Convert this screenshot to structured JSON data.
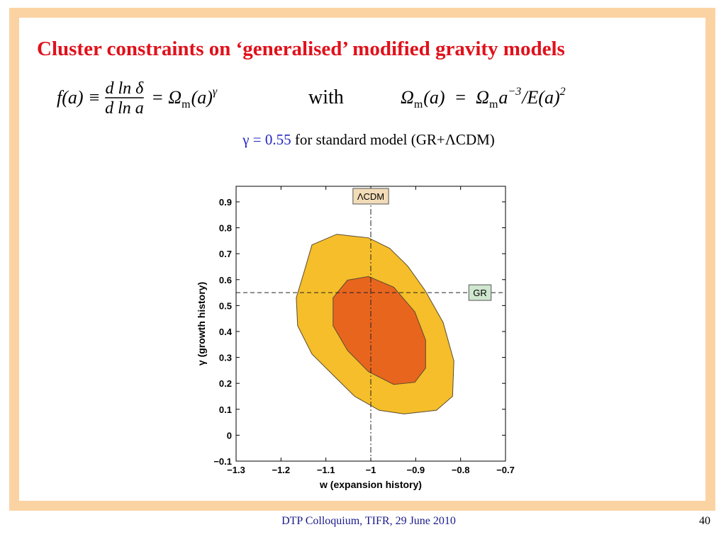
{
  "title": "Cluster constraints on ‘generalised’ modified gravity models",
  "equations": [
    {
      "parts": [
        {
          "text": "f(a) ≡ "
        },
        {
          "frac": [
            "d ln δ",
            "d ln a"
          ]
        },
        {
          "text": " = Ω"
        },
        {
          "sub": "m"
        },
        {
          "text": "(a)"
        },
        {
          "sup": "γ"
        }
      ]
    },
    {
      "parts": [
        {
          "text": "Ω"
        },
        {
          "sub": "m"
        },
        {
          "text": "(a)  =  Ω"
        },
        {
          "sub": "m"
        },
        {
          "text": "a"
        },
        {
          "sup": "−3"
        },
        {
          "text": "/E(a)"
        },
        {
          "sup": "2"
        }
      ]
    }
  ],
  "connector": "with",
  "subtitle": {
    "highlight": "γ = 0.55",
    "rest": " for standard model (GR+ΛCDM)"
  },
  "chart_data": {
    "type": "contour",
    "x_label": "w (expansion history)",
    "y_label": "γ (growth history)",
    "xlim": [
      -1.3,
      -0.7
    ],
    "ylim": [
      -0.1,
      0.96
    ],
    "xticks": [
      {
        "value": -1.3,
        "label": "−1.3"
      },
      {
        "value": -1.2,
        "label": "−1.2"
      },
      {
        "value": -1.1,
        "label": "−1.1"
      },
      {
        "value": -1,
        "label": "−1"
      },
      {
        "value": -0.9,
        "label": "−0.9"
      },
      {
        "value": -0.8,
        "label": "−0.8"
      },
      {
        "value": -0.7,
        "label": "−0.7"
      }
    ],
    "yticks": [
      {
        "value": -0.1,
        "label": "−0.1"
      },
      0,
      0.1,
      0.2,
      0.3,
      0.4,
      0.5,
      0.6,
      0.7,
      0.8,
      0.9
    ],
    "series": [
      {
        "color": "#f5be2a",
        "x": [
          -1.131,
          -1.076,
          -1.005,
          -0.958,
          -0.918,
          -0.879,
          -0.839,
          -0.815,
          -0.818,
          -0.854,
          -0.926,
          -0.981,
          -1.036,
          -1.084,
          -1.131,
          -1.163,
          -1.166,
          -1.147
        ],
        "y": [
          0.734,
          0.775,
          0.761,
          0.721,
          0.653,
          0.558,
          0.435,
          0.286,
          0.15,
          0.096,
          0.082,
          0.096,
          0.15,
          0.232,
          0.313,
          0.422,
          0.53,
          0.639
        ]
      },
      {
        "color": "#e8651e",
        "x": [
          -1.052,
          -1.005,
          -0.949,
          -0.902,
          -0.878,
          -0.878,
          -0.902,
          -0.949,
          -1.005,
          -1.052,
          -1.084,
          -1.084
        ],
        "y": [
          0.598,
          0.612,
          0.571,
          0.476,
          0.367,
          0.259,
          0.204,
          0.196,
          0.245,
          0.327,
          0.422,
          0.53
        ]
      }
    ],
    "reference_lines": {
      "x": -1,
      "y": 0.55
    },
    "annotations": [
      {
        "text": "ΛCDM",
        "color": "#f2dcb8"
      },
      {
        "text": "GR",
        "color": "#cfe6cf"
      }
    ]
  },
  "footer": "DTP Colloquium, TIFR,  29 June 2010",
  "page_number": "40"
}
